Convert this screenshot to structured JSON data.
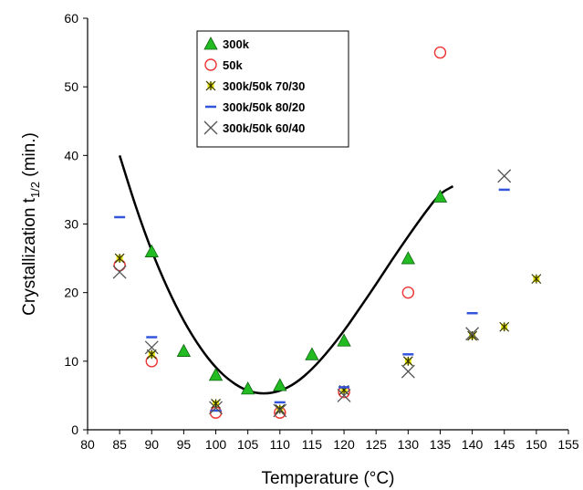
{
  "chart_data": {
    "type": "scatter",
    "xlabel": "Temperature (°C)",
    "ylabel_main": "Crystallization t",
    "ylabel_sub": "1/2",
    "ylabel_tail": " (min.)",
    "xlim": [
      80,
      155
    ],
    "ylim": [
      0,
      60
    ],
    "xticks": [
      80,
      85,
      90,
      95,
      100,
      105,
      110,
      115,
      120,
      125,
      130,
      135,
      140,
      145,
      150,
      155
    ],
    "yticks": [
      0,
      10,
      20,
      30,
      40,
      50,
      60
    ],
    "grid": false,
    "legend_position": "top-center",
    "series": [
      {
        "name": "300k",
        "marker": "triangle",
        "color": "#22bb22",
        "points": [
          [
            90,
            26
          ],
          [
            95,
            11.5
          ],
          [
            100,
            8
          ],
          [
            105,
            6
          ],
          [
            110,
            6.5
          ],
          [
            115,
            11
          ],
          [
            120,
            13
          ],
          [
            130,
            25
          ],
          [
            135,
            34
          ]
        ]
      },
      {
        "name": "50k",
        "marker": "circle",
        "color": "#ee3333",
        "points": [
          [
            85,
            24
          ],
          [
            90,
            10
          ],
          [
            100,
            2.5
          ],
          [
            110,
            2.5
          ],
          [
            120,
            5.5
          ],
          [
            130,
            20
          ],
          [
            135,
            55
          ]
        ]
      },
      {
        "name": "300k/50k 70/30",
        "marker": "asterisk",
        "color": "#e6e600",
        "points": [
          [
            85,
            25
          ],
          [
            90,
            11
          ],
          [
            100,
            3.8
          ],
          [
            110,
            3
          ],
          [
            120,
            5.8
          ],
          [
            130,
            10
          ],
          [
            140,
            13.7
          ],
          [
            145,
            15
          ],
          [
            150,
            22
          ]
        ]
      },
      {
        "name": "300k/50k 80/20",
        "marker": "dash",
        "color": "#3355dd",
        "points": [
          [
            85,
            31
          ],
          [
            90,
            13.5
          ],
          [
            100,
            2.8
          ],
          [
            110,
            4
          ],
          [
            120,
            6.2
          ],
          [
            130,
            11
          ],
          [
            140,
            17
          ],
          [
            145,
            35
          ]
        ]
      },
      {
        "name": "300k/50k 60/40",
        "marker": "x",
        "color": "#555555",
        "points": [
          [
            85,
            23
          ],
          [
            90,
            12
          ],
          [
            100,
            3.2
          ],
          [
            110,
            2.8
          ],
          [
            120,
            5
          ],
          [
            130,
            8.5
          ],
          [
            140,
            14
          ],
          [
            145,
            37
          ]
        ]
      }
    ],
    "fit_curve": {
      "color": "#000000",
      "points": [
        [
          85,
          40
        ],
        [
          87.5,
          32.5
        ],
        [
          90,
          26
        ],
        [
          92.5,
          20.5
        ],
        [
          95,
          15.8
        ],
        [
          97.5,
          12
        ],
        [
          100,
          9
        ],
        [
          102.5,
          6.9
        ],
        [
          105,
          5.6
        ],
        [
          107.5,
          5.2
        ],
        [
          110,
          5.6
        ],
        [
          112.5,
          6.8
        ],
        [
          115,
          8.8
        ],
        [
          117.5,
          11.4
        ],
        [
          120,
          14.4
        ],
        [
          122.5,
          17.8
        ],
        [
          125,
          21.2
        ],
        [
          127.5,
          24.8
        ],
        [
          130,
          28.2
        ],
        [
          132.5,
          31.5
        ],
        [
          135,
          34.5
        ],
        [
          137,
          35.5
        ]
      ]
    }
  }
}
